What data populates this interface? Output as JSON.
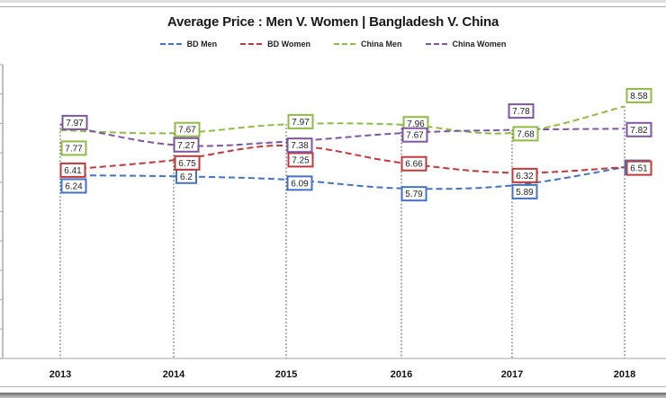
{
  "chart_data": {
    "type": "line",
    "title": "Average Price : Men V. Women | Bangladesh V. China",
    "xlabel": "",
    "ylabel": "",
    "categories": [
      "2013",
      "2014",
      "2015",
      "2016",
      "2017",
      "2018"
    ],
    "ylim": [
      0,
      10
    ],
    "y_tick_step": 1,
    "y_tick_labels_visible": false,
    "grid": false,
    "legend_position": "top",
    "series": [
      {
        "name": "BD Men",
        "color": "#4472c4",
        "values": [
          6.24,
          6.2,
          6.09,
          5.79,
          5.89,
          6.51
        ]
      },
      {
        "name": "BD Women",
        "color": "#c0393b",
        "values": [
          6.41,
          6.75,
          7.25,
          6.66,
          6.32,
          6.51
        ]
      },
      {
        "name": "China Men",
        "color": "#8fbc45",
        "values": [
          7.77,
          7.67,
          7.97,
          7.96,
          7.68,
          8.58
        ]
      },
      {
        "name": "China Women",
        "color": "#7e55a3",
        "values": [
          7.97,
          7.27,
          7.38,
          7.67,
          7.78,
          7.82
        ]
      }
    ],
    "data_labels": true,
    "drop_lines": true
  }
}
